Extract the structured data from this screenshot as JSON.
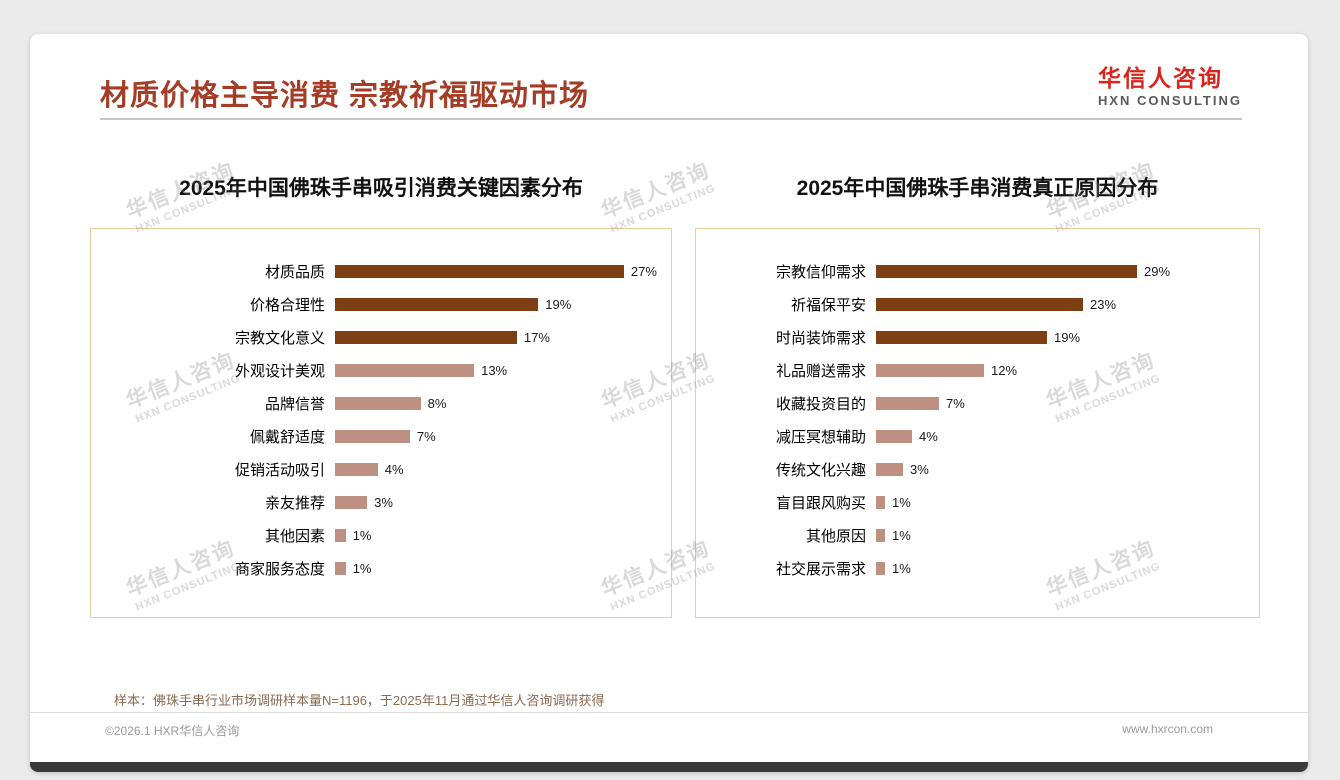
{
  "header": {
    "title": "材质价格主导消费 宗教祈福驱动市场",
    "logo_cn": "华信人咨询",
    "logo_en": "HXN CONSULTING"
  },
  "watermark": {
    "line1": "华信人咨询",
    "line2": "HXN CONSULTING"
  },
  "chart_data": [
    {
      "type": "bar",
      "orientation": "horizontal",
      "title": "2025年中国佛珠手串吸引消费关键因素分布",
      "categories": [
        "材质品质",
        "价格合理性",
        "宗教文化意义",
        "外观设计美观",
        "品牌信誉",
        "佩戴舒适度",
        "促销活动吸引",
        "亲友推荐",
        "其他因素",
        "商家服务态度"
      ],
      "values": [
        27,
        19,
        17,
        13,
        8,
        7,
        4,
        3,
        1,
        1
      ],
      "unit": "%",
      "xlim": [
        0,
        30
      ],
      "grid": false,
      "legend": "none",
      "highlight_count": 3
    },
    {
      "type": "bar",
      "orientation": "horizontal",
      "title": "2025年中国佛珠手串消费真正原因分布",
      "categories": [
        "宗教信仰需求",
        "祈福保平安",
        "时尚装饰需求",
        "礼品赠送需求",
        "收藏投资目的",
        "减压冥想辅助",
        "传统文化兴趣",
        "盲目跟风购买",
        "其他原因",
        "社交展示需求"
      ],
      "values": [
        29,
        23,
        19,
        12,
        7,
        4,
        3,
        1,
        1,
        1
      ],
      "unit": "%",
      "xlim": [
        0,
        30
      ],
      "grid": false,
      "legend": "none",
      "highlight_count": 3
    }
  ],
  "footer": {
    "note": "样本：佛珠手串行业市场调研样本量N=1196，于2025年11月通过华信人咨询调研获得",
    "copyright": "©2026.1 HXR华信人咨询",
    "website": "www.hxrcon.com"
  },
  "colors": {
    "title_text": "#a43c26",
    "logo_red": "#d7261d",
    "bar_primary": "#7d3f14",
    "bar_secondary": "#bd9082",
    "box_border": "#f0cb9e",
    "footnote_text": "#8b6a52"
  }
}
